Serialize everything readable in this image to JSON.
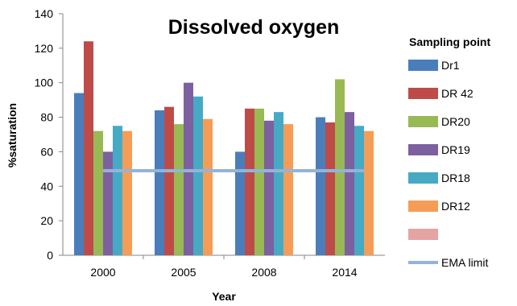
{
  "chart_data": {
    "type": "bar",
    "title": "Dissolved oxygen",
    "xlabel": "Year",
    "ylabel": "%saturation",
    "ylim": [
      0,
      140
    ],
    "ytick_step": 20,
    "yticks": [
      "0",
      "20",
      "40",
      "60",
      "80",
      "100",
      "120",
      "140"
    ],
    "categories": [
      "2000",
      "2005",
      "2008",
      "2014"
    ],
    "legend_title": "Sampling point",
    "legend_position": "right",
    "grid": false,
    "series": [
      {
        "name": "Dr1",
        "color": "#4a7ebb",
        "values": [
          94,
          84,
          60,
          80
        ]
      },
      {
        "name": "DR 42",
        "color": "#be4b48",
        "values": [
          124,
          86,
          85,
          77
        ]
      },
      {
        "name": "DR20",
        "color": "#98b954",
        "values": [
          72,
          76,
          85,
          102
        ]
      },
      {
        "name": "DR19",
        "color": "#7d60a0",
        "values": [
          60,
          100,
          78,
          83
        ]
      },
      {
        "name": "DR18",
        "color": "#46aac5",
        "values": [
          75,
          92,
          83,
          75
        ]
      },
      {
        "name": "DR12",
        "color": "#f59d56",
        "values": [
          72,
          79,
          76,
          72
        ]
      }
    ],
    "extra_legend_swatch": {
      "name": "",
      "color": "#e6a3a3"
    },
    "reference_line": {
      "name": "EMA limit",
      "value": 49,
      "color": "#95b3d7"
    }
  }
}
